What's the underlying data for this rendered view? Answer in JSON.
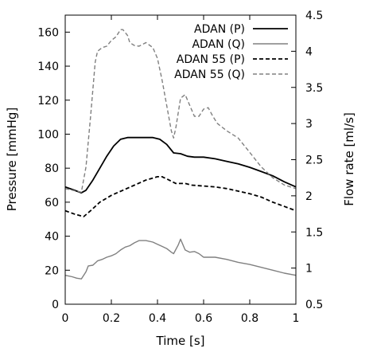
{
  "chart_data": {
    "type": "line",
    "title": "",
    "xlabel": "Time [s]",
    "ylabel": "Pressure [mmHg]",
    "y2label": "Flow rate [ml/s]",
    "xlim": [
      0,
      1
    ],
    "ylim": [
      0,
      170
    ],
    "y2lim": [
      0.5,
      4.5
    ],
    "grid": false,
    "legend_position": "top-right",
    "x_ticks": [
      "0",
      "0.2",
      "0.4",
      "0.6",
      "0.8",
      "1"
    ],
    "y_ticks": [
      "0",
      "20",
      "40",
      "60",
      "80",
      "100",
      "120",
      "140",
      "160"
    ],
    "y2_ticks": [
      "0.5",
      "1",
      "1.5",
      "2",
      "2.5",
      "3",
      "3.5",
      "4",
      "4.5"
    ],
    "series": [
      {
        "name": "ADAN (P)",
        "axis": "left",
        "color": "#000000",
        "style": "solid",
        "x": [
          0,
          0.04,
          0.07,
          0.09,
          0.12,
          0.15,
          0.18,
          0.21,
          0.24,
          0.27,
          0.3,
          0.35,
          0.38,
          0.41,
          0.44,
          0.47,
          0.5,
          0.53,
          0.56,
          0.6,
          0.65,
          0.7,
          0.75,
          0.8,
          0.85,
          0.9,
          0.95,
          1.0
        ],
        "y": [
          69,
          67,
          65.5,
          67,
          73,
          80,
          87,
          93,
          97,
          98,
          98,
          98,
          98,
          97,
          94,
          89,
          88.5,
          87,
          86.5,
          86.5,
          85.5,
          84,
          82.5,
          80.5,
          78,
          75.5,
          72,
          69
        ]
      },
      {
        "name": "ADAN (Q)",
        "axis": "right",
        "color": "#808080",
        "style": "solid",
        "x": [
          0,
          0.03,
          0.05,
          0.07,
          0.09,
          0.1,
          0.12,
          0.14,
          0.16,
          0.18,
          0.2,
          0.22,
          0.24,
          0.26,
          0.28,
          0.3,
          0.32,
          0.35,
          0.38,
          0.4,
          0.42,
          0.44,
          0.46,
          0.47,
          0.49,
          0.5,
          0.52,
          0.54,
          0.56,
          0.58,
          0.6,
          0.65,
          0.7,
          0.75,
          0.8,
          0.85,
          0.9,
          0.95,
          1.0
        ],
        "y": [
          0.9,
          0.88,
          0.86,
          0.85,
          0.95,
          1.03,
          1.04,
          1.1,
          1.12,
          1.15,
          1.17,
          1.2,
          1.25,
          1.29,
          1.31,
          1.35,
          1.38,
          1.38,
          1.36,
          1.33,
          1.3,
          1.27,
          1.22,
          1.2,
          1.32,
          1.4,
          1.25,
          1.22,
          1.23,
          1.2,
          1.15,
          1.15,
          1.12,
          1.08,
          1.05,
          1.01,
          0.97,
          0.93,
          0.9
        ]
      },
      {
        "name": "ADAN 55 (P)",
        "axis": "left",
        "color": "#000000",
        "style": "dashed",
        "x": [
          0,
          0.04,
          0.08,
          0.11,
          0.15,
          0.2,
          0.25,
          0.3,
          0.35,
          0.4,
          0.42,
          0.45,
          0.48,
          0.52,
          0.55,
          0.6,
          0.65,
          0.7,
          0.75,
          0.8,
          0.85,
          0.9,
          0.95,
          1.0
        ],
        "y": [
          55,
          53,
          51.5,
          55,
          60,
          64,
          67,
          70,
          73,
          75,
          75,
          73,
          71,
          71,
          70,
          69.5,
          69,
          68,
          66.5,
          65,
          63,
          60,
          57.5,
          55
        ]
      },
      {
        "name": "ADAN 55 (Q)",
        "axis": "right",
        "color": "#808080",
        "style": "dashed",
        "x": [
          0,
          0.04,
          0.07,
          0.09,
          0.11,
          0.13,
          0.14,
          0.16,
          0.18,
          0.2,
          0.22,
          0.24,
          0.25,
          0.27,
          0.28,
          0.3,
          0.32,
          0.35,
          0.38,
          0.4,
          0.42,
          0.44,
          0.46,
          0.47,
          0.48,
          0.5,
          0.52,
          0.54,
          0.56,
          0.58,
          0.6,
          0.62,
          0.64,
          0.66,
          0.7,
          0.75,
          0.8,
          0.85,
          0.9,
          0.95,
          1.0
        ],
        "y": [
          2.1,
          2.07,
          2.05,
          2.4,
          3.1,
          3.85,
          4.0,
          4.05,
          4.07,
          4.15,
          4.2,
          4.3,
          4.3,
          4.22,
          4.12,
          4.08,
          4.07,
          4.12,
          4.05,
          3.9,
          3.6,
          3.25,
          2.9,
          2.8,
          2.95,
          3.35,
          3.4,
          3.25,
          3.1,
          3.1,
          3.2,
          3.22,
          3.1,
          3.0,
          2.9,
          2.8,
          2.6,
          2.4,
          2.25,
          2.15,
          2.1
        ]
      }
    ]
  }
}
